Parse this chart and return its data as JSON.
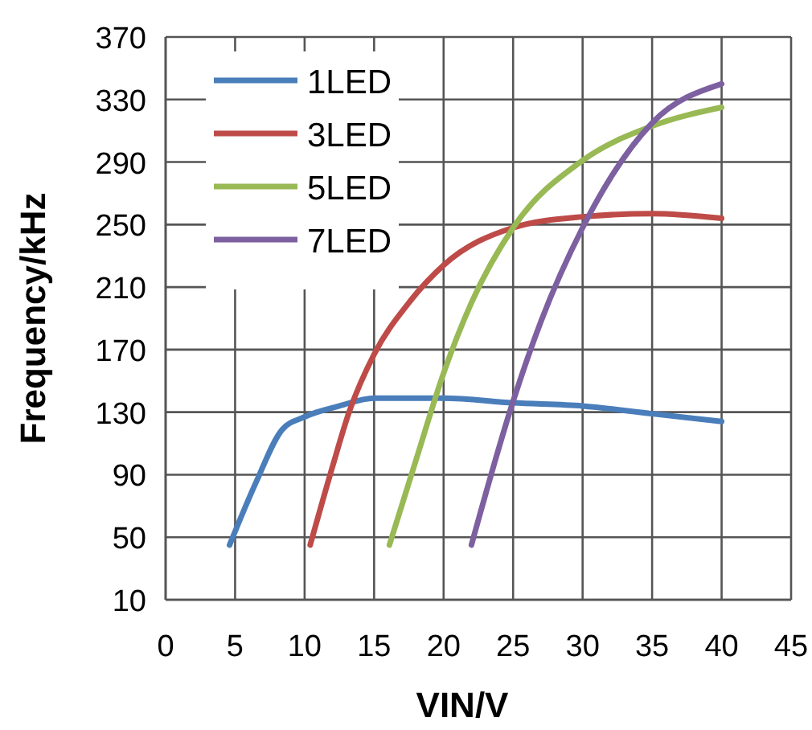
{
  "chart_data": {
    "type": "line",
    "xlabel": "VIN/V",
    "ylabel": "Frequency/kHz",
    "xlim": [
      0,
      45
    ],
    "xticks": [
      0,
      5,
      10,
      15,
      20,
      25,
      30,
      35,
      40,
      45
    ],
    "ylim": [
      10,
      370
    ],
    "yticks": [
      10,
      50,
      90,
      130,
      170,
      210,
      250,
      290,
      330,
      370
    ],
    "grid": true,
    "legend": "top left",
    "marker": "none",
    "series": [
      {
        "name": "1LED",
        "color": "#4a7ebb",
        "x": [
          4.6,
          6.5,
          8.4,
          10,
          12.5,
          15,
          20,
          25,
          30,
          35,
          40
        ],
        "values": [
          45,
          85,
          119,
          127,
          134,
          139,
          139,
          136,
          134,
          129,
          124
        ]
      },
      {
        "name": "3LED",
        "color": "#be4b48",
        "x": [
          10.4,
          12,
          13.2,
          15,
          17.5,
          20,
          25,
          30,
          35,
          40
        ],
        "values": [
          45,
          95,
          130,
          167,
          200,
          224,
          248,
          255,
          257,
          254
        ]
      },
      {
        "name": "5LED",
        "color": "#98b954",
        "x": [
          16.1,
          18,
          20,
          22,
          25,
          30,
          35,
          40
        ],
        "values": [
          45,
          99,
          155,
          200,
          248,
          291,
          313,
          325
        ]
      },
      {
        "name": "7LED",
        "color": "#7d60a0",
        "x": [
          22,
          25,
          27,
          30,
          35,
          40
        ],
        "values": [
          45,
          137,
          188,
          248,
          315,
          340
        ]
      }
    ]
  }
}
